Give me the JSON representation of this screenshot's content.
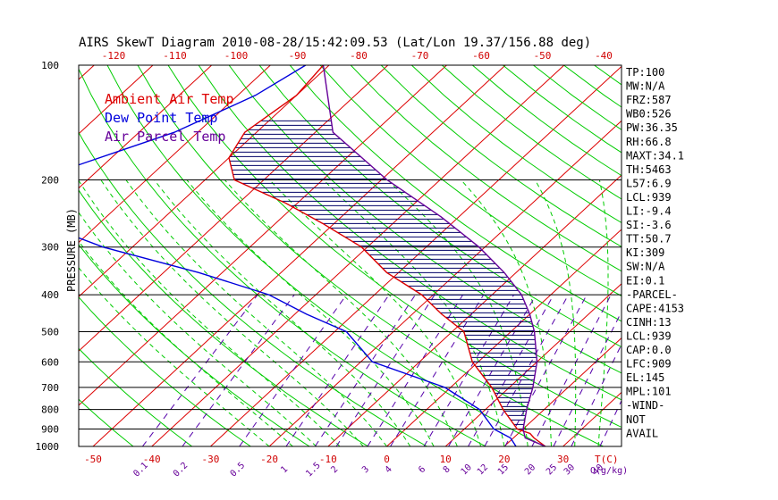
{
  "chart_data": {
    "type": "skewt",
    "title": "AIRS SkewT Diagram 2010-08-28/15:42:09.53 (Lat/Lon 19.37/156.88 deg)",
    "ylabel": "PRESSURE (MB)",
    "pressure_ticks": [
      {
        "label": "100",
        "p": 100
      },
      {
        "label": "200",
        "p": 200
      },
      {
        "label": "300",
        "p": 300
      },
      {
        "label": "400",
        "p": 400
      },
      {
        "label": "500",
        "p": 500
      },
      {
        "label": "600",
        "p": 600
      },
      {
        "label": "700",
        "p": 700
      },
      {
        "label": "800",
        "p": 800
      },
      {
        "label": "900",
        "p": 900
      },
      {
        "label": "1000",
        "p": 1000
      }
    ],
    "pressure_range": [
      100,
      1000
    ],
    "top_temp_ticks": [
      "-120",
      "-110",
      "-100",
      "-90",
      "-80",
      "-70",
      "-60",
      "-50",
      "-40"
    ],
    "bottom_temp_ticks": [
      "-50",
      "-40",
      "-30",
      "-20",
      "-10",
      "0",
      "10",
      "20",
      "30"
    ],
    "bottom_temp_unit": "T(C)",
    "mixing_ratio_ticks": [
      "0.1",
      "0.2",
      "0.5",
      "1",
      "1.5",
      "2",
      "3",
      "4",
      "6",
      "8",
      "10",
      "12",
      "15",
      "20",
      "25",
      "30",
      "40"
    ],
    "mixing_ratio_unit": "Q(g/kg)",
    "legend": [
      {
        "label": "Ambient Air Temp",
        "color": "#dd0000"
      },
      {
        "label": "Dew Point Temp",
        "color": "#0000dd"
      },
      {
        "label": "Air Parcel Temp",
        "color": "#660099"
      }
    ],
    "series": [
      {
        "name": "Ambient Air Temp",
        "color": "#dd0000",
        "points": [
          [
            100,
            -81
          ],
          [
            120,
            -80
          ],
          [
            150,
            -82
          ],
          [
            175,
            -80
          ],
          [
            200,
            -75
          ],
          [
            230,
            -62
          ],
          [
            260,
            -52
          ],
          [
            300,
            -41
          ],
          [
            350,
            -32
          ],
          [
            400,
            -22
          ],
          [
            450,
            -15
          ],
          [
            500,
            -8
          ],
          [
            600,
            -1
          ],
          [
            700,
            7
          ],
          [
            800,
            13
          ],
          [
            900,
            19
          ],
          [
            925,
            22
          ],
          [
            950,
            23.5
          ],
          [
            1000,
            27
          ]
        ]
      },
      {
        "name": "Dew Point Temp",
        "color": "#0000dd",
        "points": [
          [
            100,
            -84
          ],
          [
            120,
            -87
          ],
          [
            150,
            -94
          ],
          [
            200,
            -109
          ],
          [
            230,
            -108
          ],
          [
            260,
            -100
          ],
          [
            300,
            -85
          ],
          [
            350,
            -64
          ],
          [
            400,
            -48
          ],
          [
            450,
            -38
          ],
          [
            500,
            -28
          ],
          [
            600,
            -18
          ],
          [
            700,
            -1
          ],
          [
            800,
            9
          ],
          [
            900,
            15
          ],
          [
            950,
            19.5
          ],
          [
            1000,
            22
          ]
        ]
      },
      {
        "name": "Air Parcel Temp",
        "color": "#660099",
        "points": [
          [
            100,
            -81
          ],
          [
            150,
            -67
          ],
          [
            200,
            -49
          ],
          [
            250,
            -33
          ],
          [
            300,
            -21
          ],
          [
            350,
            -12
          ],
          [
            400,
            -5
          ],
          [
            450,
            0
          ],
          [
            500,
            4
          ],
          [
            600,
            10
          ],
          [
            700,
            14
          ],
          [
            800,
            17
          ],
          [
            900,
            20
          ],
          [
            950,
            22
          ],
          [
            1000,
            27
          ]
        ]
      }
    ],
    "stats": [
      "TP:100",
      "MW:N/A",
      "FRZ:587",
      "WB0:526",
      "PW:36.35",
      "RH:66.8",
      "MAXT:34.1",
      "TH:5463",
      "L57:6.9",
      "LCL:939",
      "LI:-9.4",
      "SI:-3.6",
      "TT:50.7",
      "KI:309",
      "SW:N/A",
      "EI:0.1",
      "-PARCEL-",
      "CAPE:4153",
      "CINH:13",
      "LCL:939",
      "CAP:0.0",
      "LFC:909",
      "EL:145",
      "MPL:101",
      "-WIND-",
      "NOT",
      "AVAIL"
    ],
    "colors": {
      "isotherm": "#dd0000",
      "dry_adiabat": "#00cc00",
      "moist_adiabat": "#00cc00",
      "mixing_ratio": "#5500aa",
      "isobar": "#000000",
      "hatch": "#000066"
    }
  }
}
